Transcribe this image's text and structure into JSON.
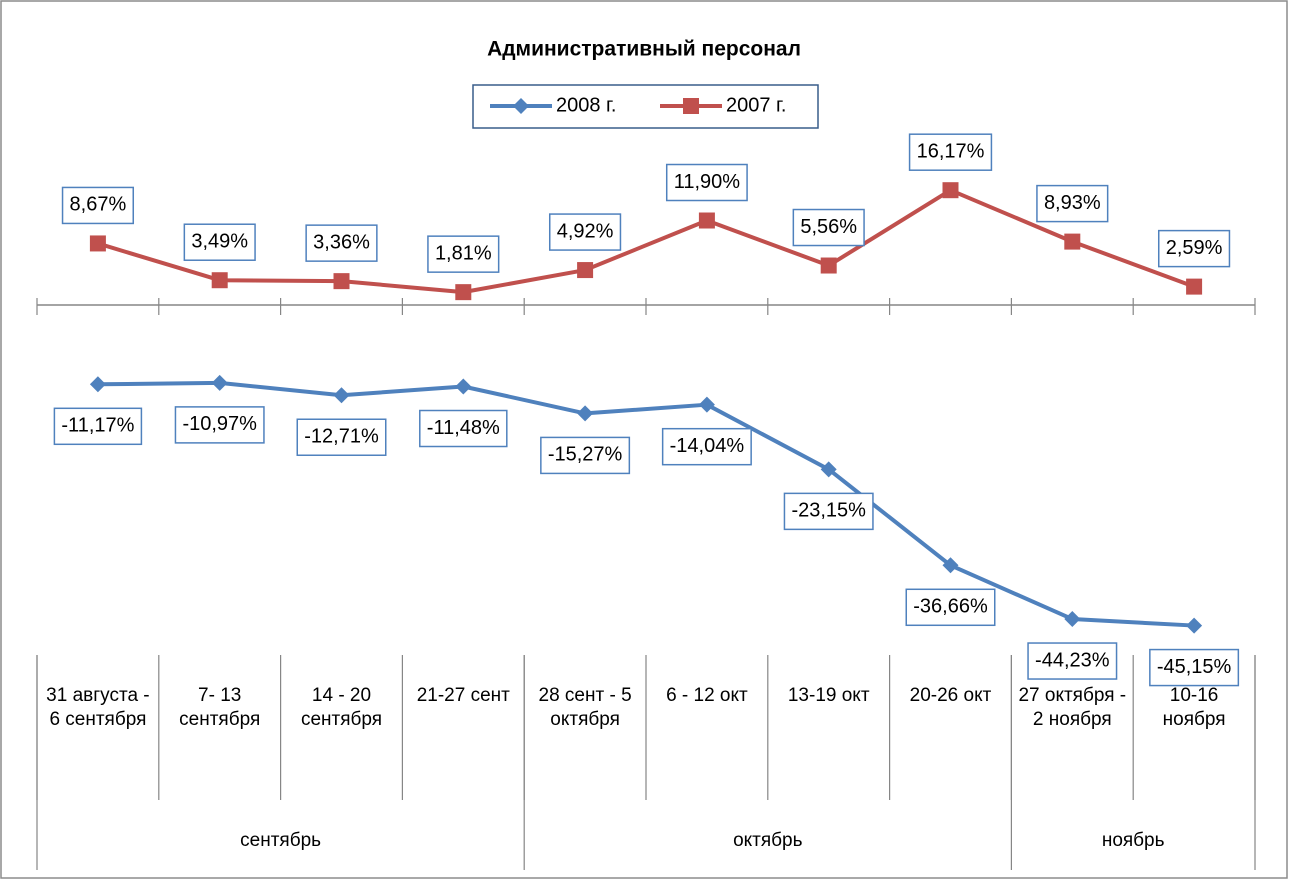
{
  "chart_data": {
    "type": "line",
    "title": "Административный  персонал",
    "categories": [
      "31 августа - 6 сентября",
      "7- 13 сентября",
      "14 - 20 сентября",
      "21-27 сент",
      "28 сент - 5 октября",
      "6 - 12 окт",
      "13-19 окт",
      "20-26 окт",
      "27 октября - 2 ноября",
      "10-16 ноября"
    ],
    "category_groups": [
      {
        "name": "сентябрь",
        "span": 4
      },
      {
        "name": "октябрь",
        "span": 4
      },
      {
        "name": "ноябрь",
        "span": 2
      }
    ],
    "series": [
      {
        "name": "2008 г.",
        "color": "#4f81bd",
        "marker": "diamond",
        "values": [
          -11.17,
          -10.97,
          -12.71,
          -11.48,
          -15.27,
          -14.04,
          -23.15,
          -36.66,
          -44.23,
          -45.15
        ],
        "value_labels": [
          "-11,17%",
          "-10,97%",
          "-12,71%",
          "-11,48%",
          "-15,27%",
          "-14,04%",
          "-23,15%",
          "-36,66%",
          "-44,23%",
          "-45,15%"
        ]
      },
      {
        "name": "2007 г.",
        "color": "#c0504d",
        "marker": "square",
        "values": [
          8.67,
          3.49,
          3.36,
          1.81,
          4.92,
          11.9,
          5.56,
          16.17,
          8.93,
          2.59
        ],
        "value_labels": [
          "8,67%",
          "3,49%",
          "3,36%",
          "1,81%",
          "4,92%",
          "11,90%",
          "5,56%",
          "16,17%",
          "8,93%",
          "2,59%"
        ]
      }
    ],
    "ylim": [
      -50,
      20
    ],
    "legend": "top"
  }
}
